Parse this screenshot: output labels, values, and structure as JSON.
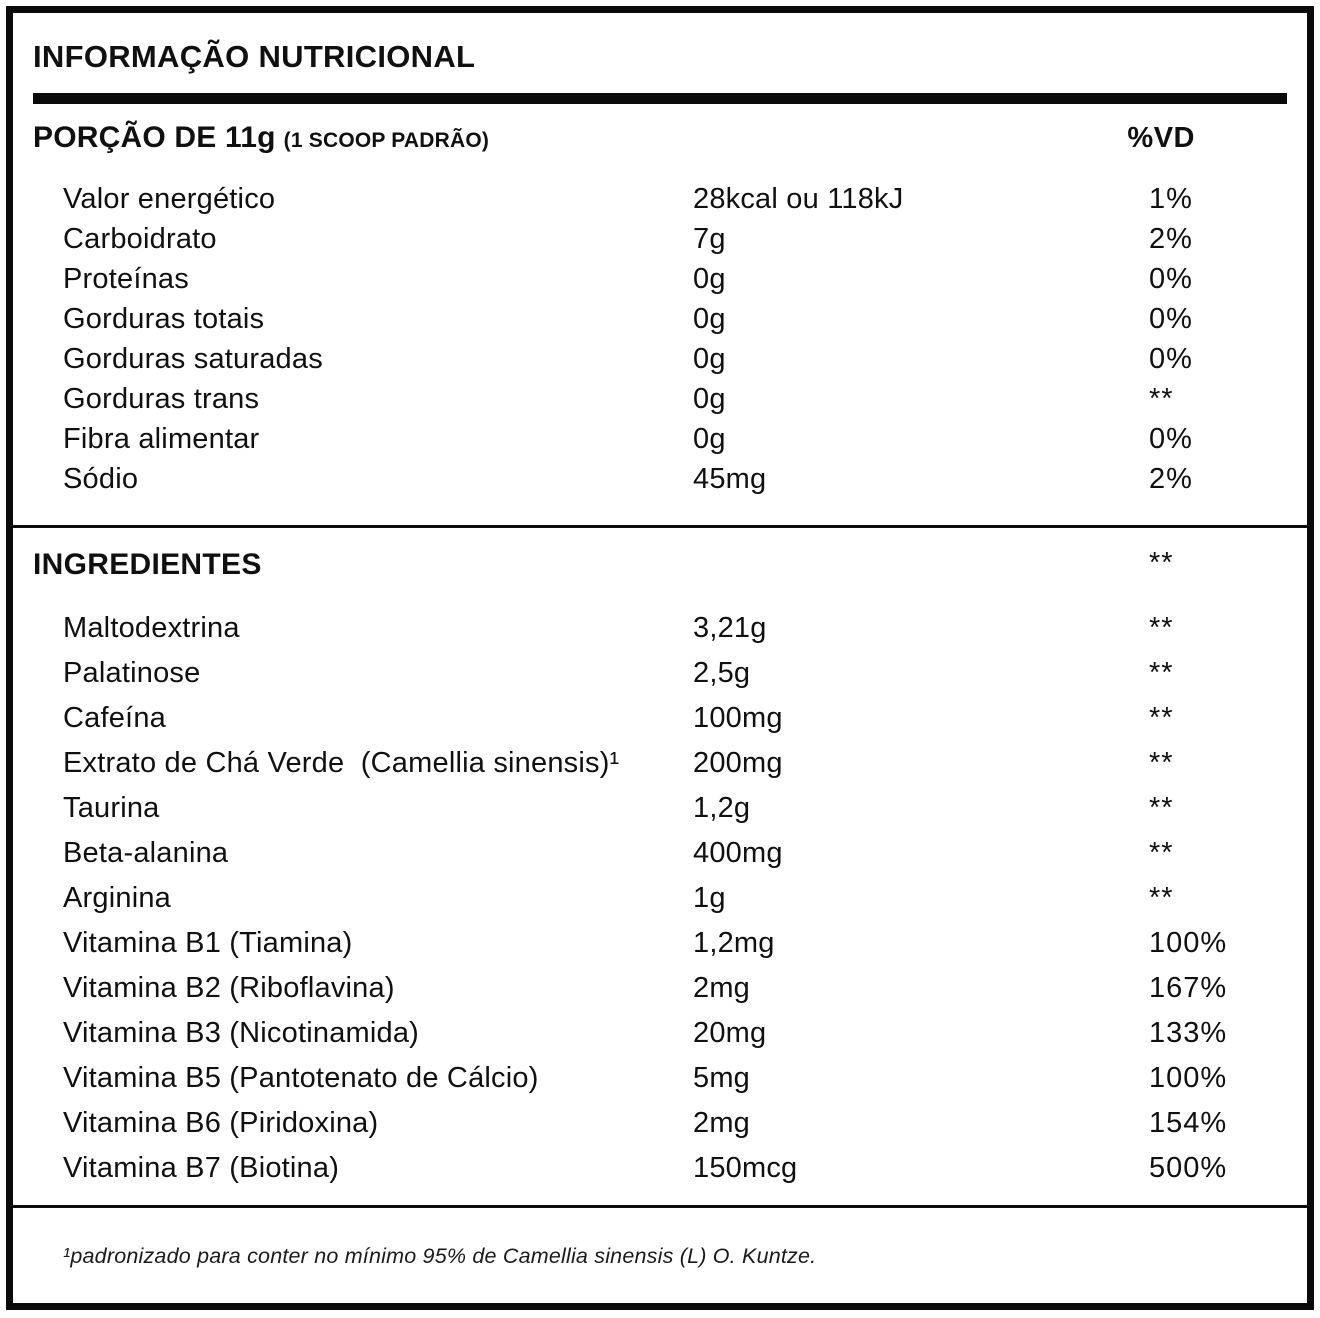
{
  "label": {
    "title": "INFORMAÇÃO NUTRICIONAL",
    "serving": {
      "portion": "PORÇÃO DE 11g",
      "portion_note": "(1 SCOOP PADRÃO)",
      "vd_header": "%VD"
    },
    "nutrition_rows": [
      {
        "label": "Valor energético",
        "value": "28kcal ou 118kJ",
        "vd": "1%"
      },
      {
        "label": "Carboidrato",
        "value": "7g",
        "vd": "2%"
      },
      {
        "label": "Proteínas",
        "value": "0g",
        "vd": "0%"
      },
      {
        "label": "Gorduras totais",
        "value": "0g",
        "vd": "0%"
      },
      {
        "label": "Gorduras saturadas",
        "value": "0g",
        "vd": "0%"
      },
      {
        "label": "Gorduras trans",
        "value": "0g",
        "vd": "**"
      },
      {
        "label": "Fibra alimentar",
        "value": "0g",
        "vd": "0%"
      },
      {
        "label": "Sódio",
        "value": "45mg",
        "vd": "2%"
      }
    ],
    "ingredients": {
      "header": "INGREDIENTES",
      "header_vd": "**",
      "rows": [
        {
          "label": "Maltodextrina",
          "value": "3,21g",
          "vd": "**"
        },
        {
          "label": "Palatinose",
          "value": "2,5g",
          "vd": "**"
        },
        {
          "label": "Cafeína",
          "value": "100mg",
          "vd": "**"
        },
        {
          "label": "Extrato de Chá Verde  (Camellia sinensis)¹",
          "value": "200mg",
          "vd": "**"
        },
        {
          "label": "Taurina",
          "value": "1,2g",
          "vd": "**"
        },
        {
          "label": "Beta-alanina",
          "value": "400mg",
          "vd": "**"
        },
        {
          "label": "Arginina",
          "value": "1g",
          "vd": "**"
        },
        {
          "label": "Vitamina B1 (Tiamina)",
          "value": "1,2mg",
          "vd": "100%"
        },
        {
          "label": "Vitamina B2 (Riboflavina)",
          "value": "2mg",
          "vd": "167%"
        },
        {
          "label": "Vitamina B3 (Nicotinamida)",
          "value": "20mg",
          "vd": "133%"
        },
        {
          "label": "Vitamina B5 (Pantotenato de Cálcio)",
          "value": "5mg",
          "vd": "100%"
        },
        {
          "label": "Vitamina B6 (Piridoxina)",
          "value": "2mg",
          "vd": "154%"
        },
        {
          "label": "Vitamina B7 (Biotina)",
          "value": "150mcg",
          "vd": "500%"
        }
      ]
    },
    "footnote": "¹padronizado para conter no mínimo 95% de Camellia sinensis (L) O. Kuntze.",
    "colors": {
      "ink": "#0a0a0a",
      "background": "#ffffff"
    }
  }
}
